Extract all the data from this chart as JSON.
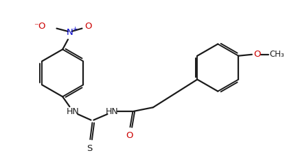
{
  "background_color": "#ffffff",
  "line_color": "#1a1a1a",
  "bond_width": 1.6,
  "font_size": 8.5,
  "nitro_N_color": "#0000cc",
  "nitro_O_color": "#cc0000",
  "O_color": "#cc0000",
  "figsize": [
    4.34,
    2.24
  ],
  "dpi": 100,
  "xlim": [
    0,
    11
  ],
  "ylim": [
    0,
    5.5
  ]
}
